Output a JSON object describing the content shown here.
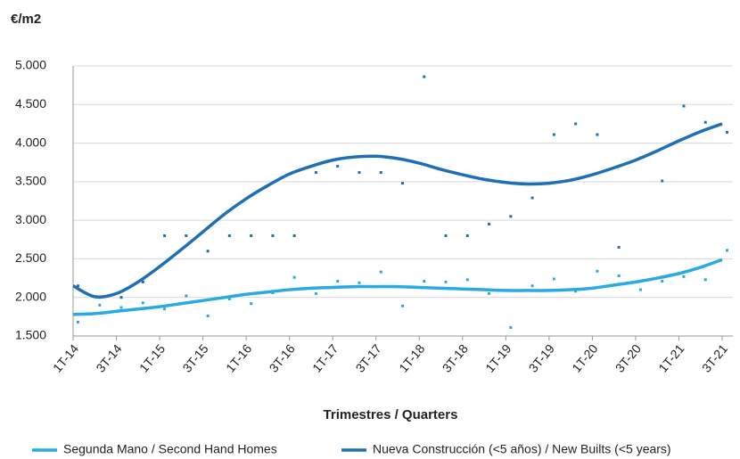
{
  "chart_data": {
    "type": "scatter",
    "y_label": "€/m2",
    "x_label": "Trimestres / Quarters",
    "categories": [
      "1T-14",
      null,
      "3T-14",
      null,
      "1T-15",
      null,
      "3T-15",
      null,
      "1T-16",
      null,
      "3T-16",
      null,
      "1T-17",
      null,
      "3T-17",
      null,
      "1T-18",
      null,
      "3T-18",
      null,
      "1T-19",
      null,
      "3T-19",
      null,
      "1T-20",
      null,
      "3T-20",
      null,
      "1T-21",
      null,
      "3T-21"
    ],
    "ylim": [
      1500,
      5000
    ],
    "yticks": [
      {
        "value": 1500,
        "label": "1.500"
      },
      {
        "value": 2000,
        "label": "2.000"
      },
      {
        "value": 2500,
        "label": "2.500"
      },
      {
        "value": 3000,
        "label": "3.000"
      },
      {
        "value": 3500,
        "label": "3.500"
      },
      {
        "value": 4000,
        "label": "4.000"
      },
      {
        "value": 4500,
        "label": "4.500"
      },
      {
        "value": 5000,
        "label": "5.000"
      }
    ],
    "grid": true,
    "series": [
      {
        "name": "Segunda Mano / Second Hand Homes",
        "color": "#29abe2",
        "values": [
          1680,
          1900,
          1870,
          1930,
          1850,
          2020,
          1760,
          1980,
          1920,
          2060,
          2260,
          2050,
          2210,
          2190,
          2330,
          1890,
          2210,
          2200,
          2230,
          2050,
          1610,
          2150,
          2240,
          2080,
          2340,
          2280,
          2100,
          2210,
          2270,
          2230,
          2610
        ],
        "trend": [
          1780,
          1790,
          1820,
          1850,
          1880,
          1920,
          1960,
          2000,
          2040,
          2070,
          2100,
          2120,
          2130,
          2140,
          2140,
          2140,
          2130,
          2120,
          2110,
          2100,
          2090,
          2090,
          2090,
          2100,
          2120,
          2160,
          2200,
          2250,
          2310,
          2390,
          2490
        ]
      },
      {
        "name": "Nueva Construcción (<5 años) / New Builts (<5 years)",
        "color": "#1f6fb5",
        "values": [
          2150,
          2000,
          2000,
          2200,
          2800,
          2800,
          2600,
          2800,
          2800,
          2800,
          2800,
          3620,
          3700,
          3620,
          3620,
          3480,
          4860,
          2800,
          2800,
          2950,
          3050,
          3290,
          4110,
          4250,
          4110,
          2650,
          3810,
          3510,
          4480,
          4270,
          4140
        ],
        "trend": [
          2150,
          2010,
          2050,
          2200,
          2400,
          2620,
          2850,
          3080,
          3280,
          3450,
          3600,
          3700,
          3780,
          3820,
          3830,
          3800,
          3740,
          3660,
          3590,
          3530,
          3490,
          3470,
          3480,
          3520,
          3590,
          3680,
          3780,
          3900,
          4030,
          4150,
          4250
        ]
      }
    ]
  }
}
